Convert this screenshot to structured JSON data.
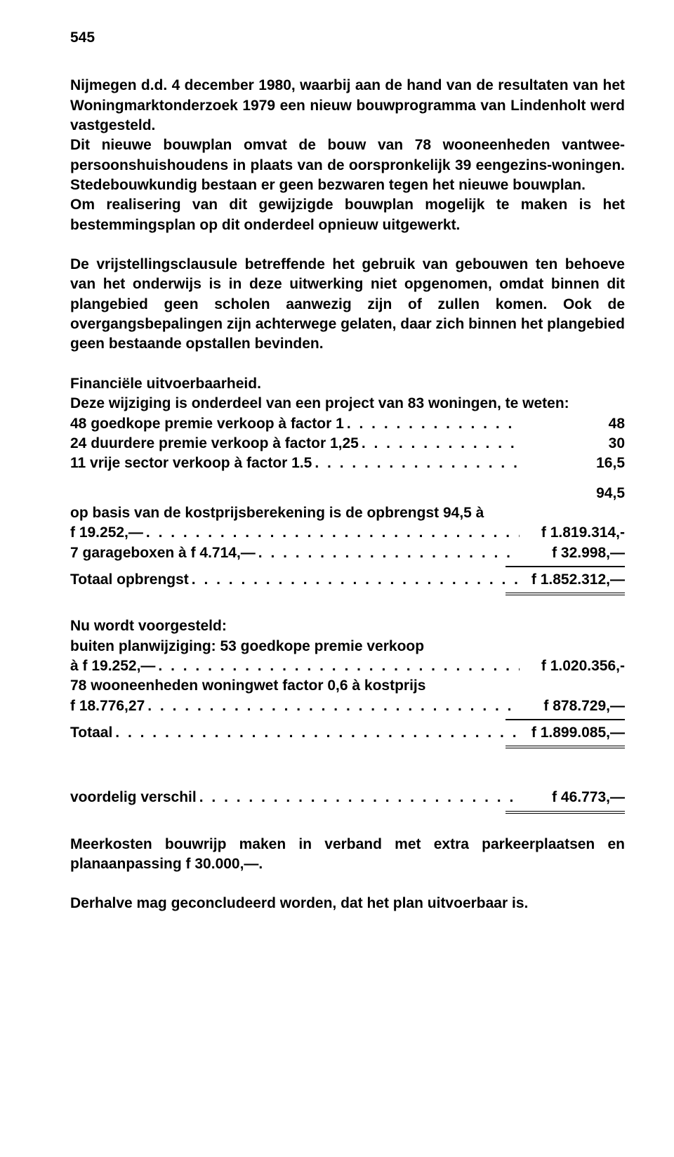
{
  "pageNumber": "545",
  "para1": "Nijmegen d.d. 4 december 1980, waarbij aan de hand van de resultaten van het Woningmarktonderzoek 1979 een nieuw bouwprogramma van Lindenholt werd vastgesteld.",
  "para2": "Dit nieuwe bouwplan omvat de bouw van 78 wooneenheden vantwee-persoonshuishoudens in plaats van de oorspronkelijk 39 eengezins-woningen. Stedebouwkundig bestaan er geen bezwaren tegen het nieuwe bouwplan.",
  "para3": "Om realisering van dit gewijzigde bouwplan mogelijk te maken is het bestemmingsplan op dit onderdeel opnieuw uitgewerkt.",
  "para4": "De vrijstellingsclausule betreffende het gebruik van gebouwen ten behoeve van het onderwijs is in deze uitwerking niet opgenomen, omdat binnen dit plangebied geen scholen aanwezig zijn of zullen komen. Ook de overgangsbepalingen zijn achterwege gelaten, daar zich binnen het plangebied geen bestaande opstallen bevinden.",
  "fin_heading": "Financiële uitvoerbaarheid.",
  "fin_intro": "Deze wijziging is onderdeel van een project van 83 woningen, te weten:",
  "row1": {
    "lead": "48 goedkope premie verkoop à factor 1",
    "tail": "48"
  },
  "row2": {
    "lead": "24 duurdere premie verkoop à factor 1,25",
    "tail": "30"
  },
  "row3": {
    "lead": "11 vrije sector verkoop à factor 1.5",
    "tail": "16,5"
  },
  "sum_right": "94,5",
  "opbrengst_intro": "op basis van de kostprijsberekening is de opbrengst 94,5 à",
  "row4": {
    "lead": "f 19.252,—",
    "tail": "f    1.819.314,-"
  },
  "row5": {
    "lead": "7 garageboxen à f 4.714,—",
    "tail": "f       32.998,—"
  },
  "row6": {
    "lead": "Totaal   opbrengst",
    "tail": "f 1.852.312,—"
  },
  "nu_heading": "Nu wordt voorgesteld:",
  "nu_line1": "buiten planwijziging: 53 goedkope premie verkoop",
  "row7": {
    "lead": "à f 19.252,—",
    "tail": "f    1.020.356,-"
  },
  "nu_line2": "78 wooneenheden woningwet factor 0,6 à kostprijs",
  "row8": {
    "lead": "f 18.776,27",
    "tail": "f      878.729,—"
  },
  "row9": {
    "lead": "Totaal",
    "tail": "f 1.899.085,—"
  },
  "row10": {
    "lead": "voordelig   verschil",
    "tail": "f       46.773,—"
  },
  "meerkosten": "Meerkosten bouwrijp maken in verband met extra parkeerplaatsen en planaanpassing f 30.000,—.",
  "conclusie": "Derhalve mag geconcludeerd worden, dat het plan uitvoerbaar is.",
  "dots": ". . . . . . . . . . . . . . . . . . . . . . . . . . . . . . . . . . . . . . . . . . . . . . . . . . . . . . . . . . . . . . ."
}
